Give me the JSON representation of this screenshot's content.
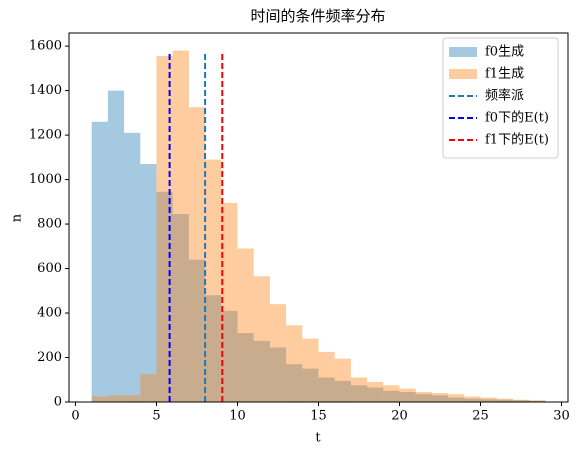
{
  "chart_data": {
    "type": "histogram",
    "title": "时间的条件频率分布",
    "x_label": "t",
    "y_label": "n",
    "bins": [
      1,
      2,
      3,
      4,
      5,
      6,
      7,
      8,
      9,
      10,
      11,
      12,
      13,
      14,
      15,
      16,
      17,
      18,
      19,
      20,
      21,
      22,
      23,
      24,
      25,
      26,
      27,
      28,
      29
    ],
    "series": [
      {
        "name": "f0生成",
        "color": "#1f77b4",
        "opacity": 0.4,
        "values": [
          1260,
          1400,
          1210,
          1070,
          945,
          845,
          640,
          480,
          410,
          310,
          275,
          245,
          170,
          150,
          110,
          95,
          75,
          65,
          50,
          45,
          35,
          30,
          20,
          15,
          12,
          10,
          8,
          5
        ]
      },
      {
        "name": "f1生成",
        "color": "#ff7f0e",
        "opacity": 0.4,
        "values": [
          25,
          30,
          30,
          125,
          1555,
          1580,
          1325,
          1090,
          895,
          690,
          565,
          440,
          345,
          285,
          225,
          195,
          110,
          90,
          75,
          60,
          45,
          40,
          35,
          25,
          20,
          15,
          10,
          8
        ]
      }
    ],
    "vlines": [
      {
        "name": "频率派",
        "color": "#1f77b4",
        "x": 8.0,
        "ymin": 0,
        "ymax": 1570
      },
      {
        "name": "f0下的E(t)",
        "color": "#0000ff",
        "x": 5.81,
        "ymin": 0,
        "ymax": 1570
      },
      {
        "name": "f1下的E(t)",
        "color": "#ff0000",
        "x": 9.06,
        "ymin": 0,
        "ymax": 1570
      }
    ],
    "xlim": [
      -0.4,
      30.4
    ],
    "ylim": [
      0,
      1659
    ],
    "xticks": [
      0,
      5,
      10,
      15,
      20,
      25,
      30
    ],
    "yticks": [
      0,
      200,
      400,
      600,
      800,
      1000,
      1200,
      1400,
      1600
    ],
    "legend": "upper right"
  }
}
